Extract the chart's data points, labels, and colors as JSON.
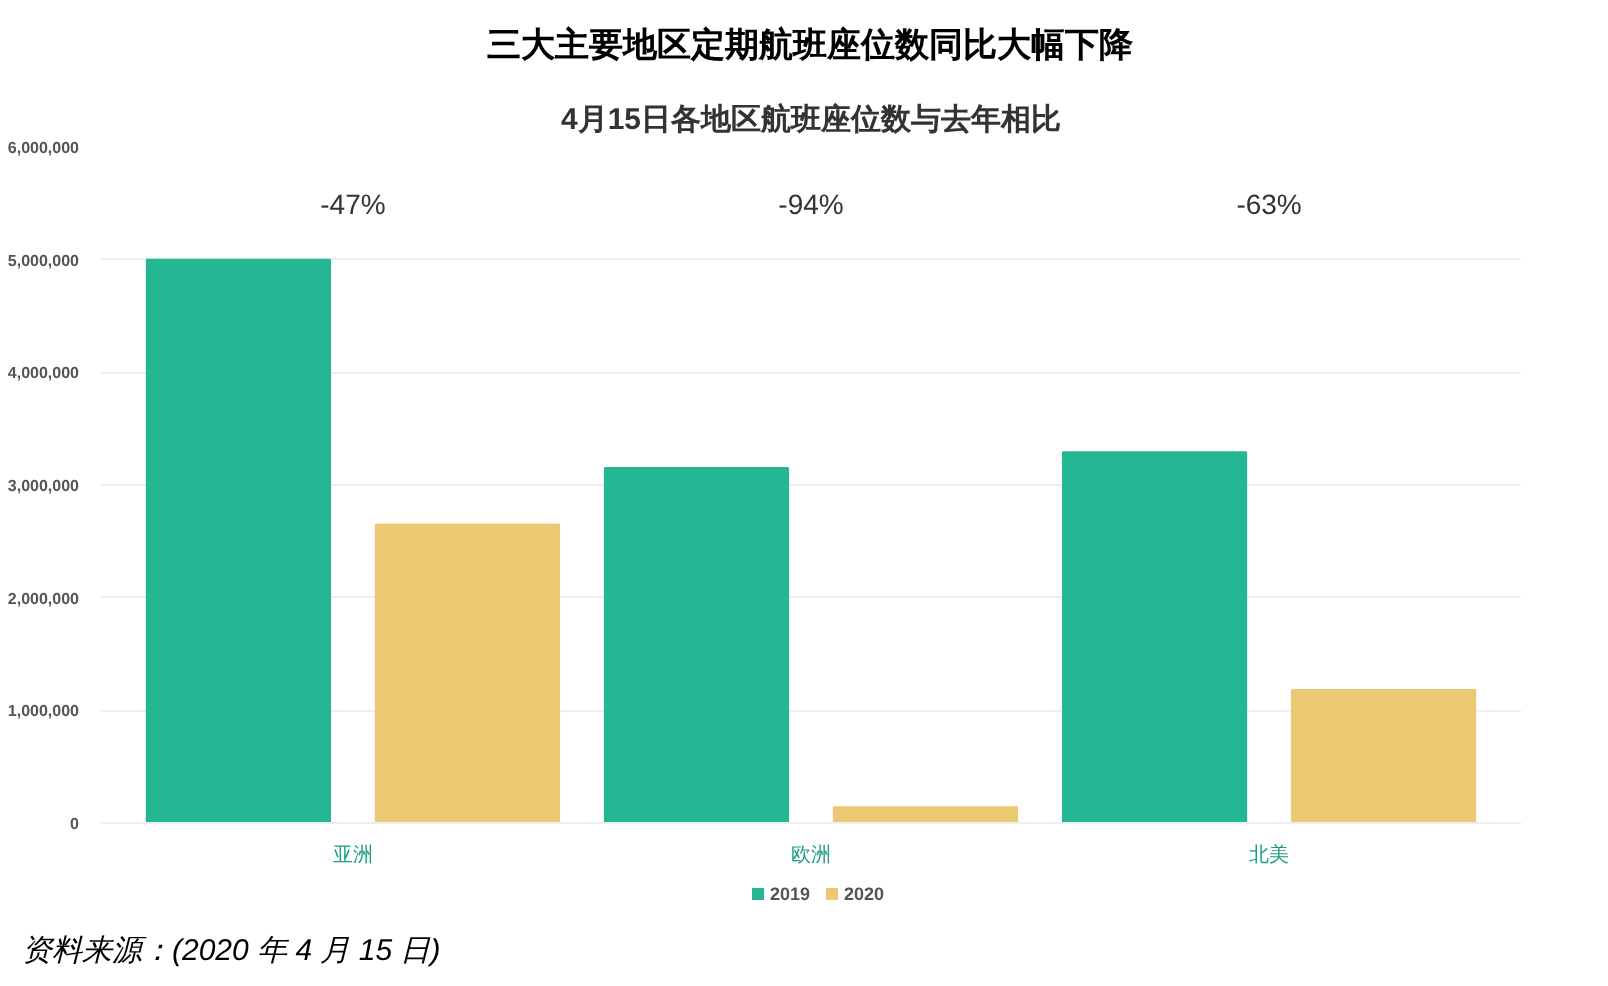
{
  "chart_data": {
    "type": "bar",
    "title": "三大主要地区定期航班座位数同比大幅下降",
    "subtitle": "4月15日各地区航班座位数与去年相比",
    "categories": [
      "亚洲",
      "欧洲",
      "北美"
    ],
    "series": [
      {
        "name": "2019",
        "color": "#25b794",
        "values": [
          5000000,
          3150000,
          3290000
        ]
      },
      {
        "name": "2020",
        "color": "#ebc973",
        "values": [
          2650000,
          140000,
          1180000
        ]
      }
    ],
    "ylim": [
      0,
      6000000
    ],
    "yticks": [
      {
        "value": 0,
        "label": "0"
      },
      {
        "value": 1000000,
        "label": "1,000,000"
      },
      {
        "value": 2000000,
        "label": "2,000,000"
      },
      {
        "value": 3000000,
        "label": "3,000,000"
      },
      {
        "value": 4000000,
        "label": "4,000,000"
      },
      {
        "value": 5000000,
        "label": "5,000,000"
      },
      {
        "value": 6000000,
        "label": "6,000,000"
      }
    ],
    "grid": "y",
    "legend": "bottom",
    "annotations": [
      "-47%",
      "-94%",
      "-63%",
      "资料来源：(2020 年 4 月 15 日)"
    ]
  }
}
